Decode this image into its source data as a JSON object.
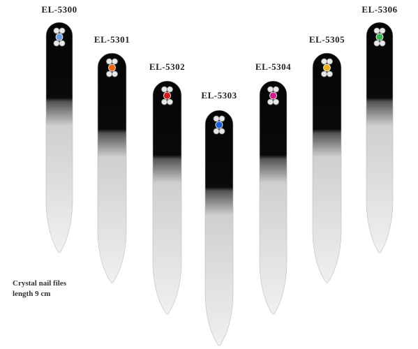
{
  "products": [
    {
      "label": "EL-5300"
    },
    {
      "label": "EL-5301"
    },
    {
      "label": "EL-5302"
    },
    {
      "label": "EL-5303"
    },
    {
      "label": "EL-5304"
    },
    {
      "label": "EL-5305"
    },
    {
      "label": "EL-5306"
    }
  ],
  "caption": {
    "line1": "Crystal nail files",
    "line2": "length 9 cm"
  }
}
